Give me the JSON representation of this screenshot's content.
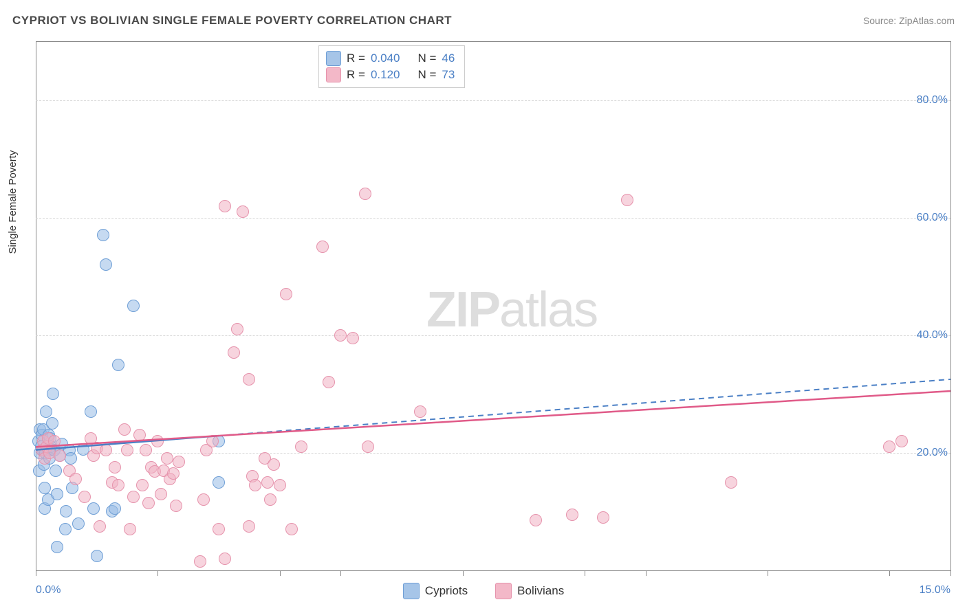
{
  "title": "CYPRIOT VS BOLIVIAN SINGLE FEMALE POVERTY CORRELATION CHART",
  "source": "Source: ZipAtlas.com",
  "ylabel": "Single Female Poverty",
  "watermark_a": "ZIP",
  "watermark_b": "atlas",
  "chart": {
    "type": "scatter",
    "xlim": [
      0,
      15
    ],
    "ylim": [
      0,
      90
    ],
    "x_ticks": [
      0,
      2,
      4,
      5,
      7,
      9,
      10,
      12,
      14,
      15
    ],
    "x_tick_labels_shown": {
      "0": "0.0%",
      "15": "15.0%"
    },
    "y_ticks": [
      20,
      40,
      60,
      80
    ],
    "y_tick_labels": [
      "20.0%",
      "40.0%",
      "60.0%",
      "80.0%"
    ],
    "grid_color": "#d8d8d8",
    "background_color": "#ffffff",
    "axis_color": "#888888",
    "tick_label_color": "#4a7fc5",
    "title_color": "#4a4a4a",
    "title_fontsize": 17,
    "label_fontsize": 15,
    "tick_fontsize": 16,
    "marker_size": 18,
    "series": [
      {
        "name": "Cypriots",
        "color_fill": "rgba(151,188,229,0.55)",
        "color_stroke": "#6f9fd6",
        "r_value": "0.040",
        "n_value": "46",
        "trend": {
          "x0": 0,
          "y0": 20.5,
          "x1": 15,
          "y1": 32.5,
          "solid_until_x": 3.0,
          "color": "#4a7fc5"
        },
        "points": [
          [
            0.05,
            22
          ],
          [
            0.07,
            24
          ],
          [
            0.07,
            20
          ],
          [
            0.06,
            17
          ],
          [
            0.09,
            21
          ],
          [
            0.1,
            23
          ],
          [
            0.1,
            20.5
          ],
          [
            0.12,
            24
          ],
          [
            0.12,
            20.5
          ],
          [
            0.14,
            18
          ],
          [
            0.15,
            14
          ],
          [
            0.15,
            10.5
          ],
          [
            0.16,
            20
          ],
          [
            0.17,
            27
          ],
          [
            0.2,
            12
          ],
          [
            0.21,
            23
          ],
          [
            0.22,
            20.5
          ],
          [
            0.22,
            19
          ],
          [
            0.24,
            22.5
          ],
          [
            0.25,
            21
          ],
          [
            0.27,
            25
          ],
          [
            0.28,
            30
          ],
          [
            0.3,
            20.5
          ],
          [
            0.33,
            17
          ],
          [
            0.35,
            13
          ],
          [
            0.35,
            4
          ],
          [
            0.4,
            19.5
          ],
          [
            0.43,
            21.5
          ],
          [
            0.48,
            7
          ],
          [
            0.5,
            10
          ],
          [
            0.55,
            20.5
          ],
          [
            0.58,
            19
          ],
          [
            0.6,
            14
          ],
          [
            0.7,
            8
          ],
          [
            0.78,
            20.6
          ],
          [
            0.9,
            27
          ],
          [
            0.95,
            10.5
          ],
          [
            1.0,
            2.5
          ],
          [
            1.1,
            57
          ],
          [
            1.15,
            52
          ],
          [
            1.25,
            10
          ],
          [
            1.3,
            10.5
          ],
          [
            1.35,
            35
          ],
          [
            1.6,
            45
          ],
          [
            3.0,
            15
          ],
          [
            3.0,
            22
          ]
        ]
      },
      {
        "name": "Bolivians",
        "color_fill": "rgba(241,177,195,0.55)",
        "color_stroke": "#e693ac",
        "r_value": "0.120",
        "n_value": "73",
        "trend": {
          "x0": 0,
          "y0": 21,
          "x1": 15,
          "y1": 30.5,
          "solid_until_x": 15,
          "color": "#e05a88"
        },
        "points": [
          [
            0.1,
            20.5
          ],
          [
            0.12,
            22
          ],
          [
            0.15,
            19
          ],
          [
            0.18,
            21
          ],
          [
            0.2,
            22.5
          ],
          [
            0.22,
            20
          ],
          [
            0.3,
            22
          ],
          [
            0.4,
            19.5
          ],
          [
            0.55,
            17
          ],
          [
            0.65,
            15.5
          ],
          [
            0.8,
            12.5
          ],
          [
            0.9,
            22.5
          ],
          [
            0.95,
            19.5
          ],
          [
            1.0,
            20.8
          ],
          [
            1.05,
            7.5
          ],
          [
            1.15,
            20.5
          ],
          [
            1.25,
            15
          ],
          [
            1.3,
            17.5
          ],
          [
            1.35,
            14.5
          ],
          [
            1.45,
            24
          ],
          [
            1.5,
            20.5
          ],
          [
            1.55,
            7
          ],
          [
            1.6,
            12.5
          ],
          [
            1.7,
            23
          ],
          [
            1.75,
            14.5
          ],
          [
            1.8,
            20.5
          ],
          [
            1.85,
            11.5
          ],
          [
            1.9,
            17.5
          ],
          [
            1.95,
            16.8
          ],
          [
            2.0,
            22
          ],
          [
            2.05,
            13
          ],
          [
            2.1,
            17
          ],
          [
            2.15,
            19
          ],
          [
            2.2,
            15.5
          ],
          [
            2.25,
            16.5
          ],
          [
            2.3,
            11
          ],
          [
            2.35,
            18.5
          ],
          [
            2.7,
            1.5
          ],
          [
            2.75,
            12
          ],
          [
            2.8,
            20.5
          ],
          [
            2.9,
            22
          ],
          [
            3.0,
            7
          ],
          [
            3.1,
            2
          ],
          [
            3.1,
            62
          ],
          [
            3.25,
            37
          ],
          [
            3.3,
            41
          ],
          [
            3.4,
            61
          ],
          [
            3.5,
            7.5
          ],
          [
            3.5,
            32.5
          ],
          [
            3.55,
            16
          ],
          [
            3.6,
            14.5
          ],
          [
            3.75,
            19
          ],
          [
            3.8,
            15
          ],
          [
            3.85,
            12
          ],
          [
            3.9,
            18
          ],
          [
            4.0,
            14.5
          ],
          [
            4.1,
            47
          ],
          [
            4.2,
            7
          ],
          [
            4.35,
            21
          ],
          [
            4.7,
            55
          ],
          [
            4.8,
            32
          ],
          [
            5.0,
            40
          ],
          [
            5.2,
            39.5
          ],
          [
            5.4,
            64
          ],
          [
            5.45,
            21
          ],
          [
            6.3,
            27
          ],
          [
            8.2,
            8.5
          ],
          [
            8.8,
            9.5
          ],
          [
            9.3,
            9
          ],
          [
            9.7,
            63
          ],
          [
            11.4,
            15
          ],
          [
            14.0,
            21
          ],
          [
            14.2,
            22
          ]
        ]
      }
    ]
  },
  "stats_box": {
    "r_label": "R =",
    "n_label": "N ="
  },
  "legend": {
    "items": [
      {
        "label": "Cypriots",
        "fill": "#a6c5e8",
        "stroke": "#6f9fd6"
      },
      {
        "label": "Bolivians",
        "fill": "#f3b8c8",
        "stroke": "#e693ac"
      }
    ]
  }
}
